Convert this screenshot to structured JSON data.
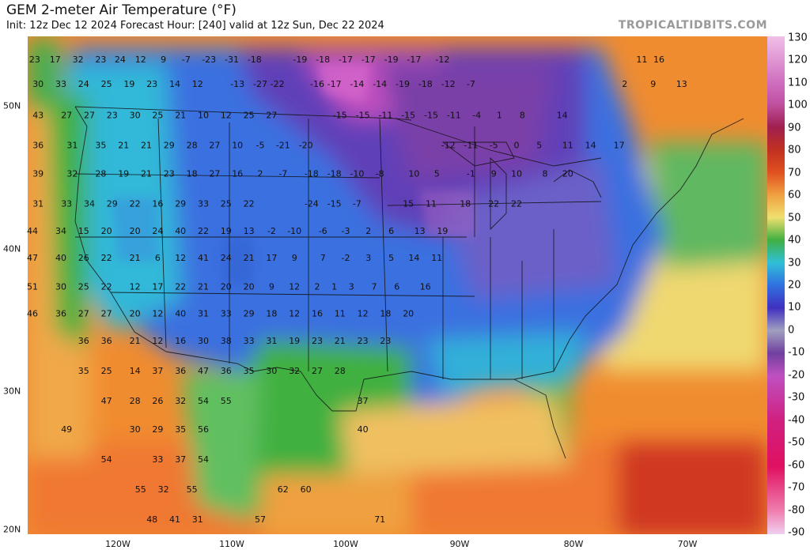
{
  "header": {
    "title": "GEM 2-meter Air Temperature (°F)",
    "subtitle": "Init: 12z Dec 12 2024   Forecast Hour: [240]   valid at 12z Sun, Dec 22 2024",
    "brand": "TROPICALTIDBITS.COM"
  },
  "axes": {
    "lat_labels": [
      {
        "text": "50N",
        "lat": 50
      },
      {
        "text": "40N",
        "lat": 40
      },
      {
        "text": "30N",
        "lat": 30
      },
      {
        "text": "20N",
        "lat": 20
      }
    ],
    "lon_labels": [
      {
        "text": "120W",
        "lon": -120
      },
      {
        "text": "110W",
        "lon": -110
      },
      {
        "text": "100W",
        "lon": -100
      },
      {
        "text": "90W",
        "lon": -90
      },
      {
        "text": "80W",
        "lon": -80
      },
      {
        "text": "70W",
        "lon": -70
      }
    ]
  },
  "colorbar": {
    "labels": [
      "130",
      "120",
      "110",
      "100",
      "90",
      "80",
      "70",
      "60",
      "50",
      "40",
      "30",
      "20",
      "10",
      "0",
      "-10",
      "-20",
      "-30",
      "-40",
      "-50",
      "-60",
      "-70",
      "-80",
      "-90"
    ],
    "stops": [
      {
        "v": 130,
        "c": "#f0c0e8"
      },
      {
        "v": 110,
        "c": "#d070c0"
      },
      {
        "v": 100,
        "c": "#c050a0"
      },
      {
        "v": 90,
        "c": "#a02050"
      },
      {
        "v": 80,
        "c": "#c03020"
      },
      {
        "v": 70,
        "c": "#e05020"
      },
      {
        "v": 60,
        "c": "#f0a040"
      },
      {
        "v": 50,
        "c": "#f0e070"
      },
      {
        "v": 40,
        "c": "#40b040"
      },
      {
        "v": 30,
        "c": "#30c0d8"
      },
      {
        "v": 20,
        "c": "#3070e0"
      },
      {
        "v": 10,
        "c": "#4030c0"
      },
      {
        "v": 0,
        "c": "#a0a0c0"
      },
      {
        "v": -10,
        "c": "#7040a0"
      },
      {
        "v": -20,
        "c": "#c050c0"
      },
      {
        "v": -40,
        "c": "#d02080"
      },
      {
        "v": -60,
        "c": "#e01060"
      },
      {
        "v": -80,
        "c": "#f080b0"
      },
      {
        "v": -90,
        "c": "#f0d0f0"
      }
    ]
  },
  "temperatures": [
    {
      "t": "23",
      "lon": -127.3,
      "lat": 53.2
    },
    {
      "t": "17",
      "lon": -125.5,
      "lat": 53.2
    },
    {
      "t": "32",
      "lon": -123.5,
      "lat": 53.2
    },
    {
      "t": "23",
      "lon": -121.5,
      "lat": 53.2
    },
    {
      "t": "24",
      "lon": -119.8,
      "lat": 53.2
    },
    {
      "t": "12",
      "lon": -118.0,
      "lat": 53.2
    },
    {
      "t": "9",
      "lon": -116.0,
      "lat": 53.2
    },
    {
      "t": "-7",
      "lon": -114.0,
      "lat": 53.2
    },
    {
      "t": "-23",
      "lon": -112.0,
      "lat": 53.2
    },
    {
      "t": "-31",
      "lon": -110.0,
      "lat": 53.2
    },
    {
      "t": "-18",
      "lon": -108.0,
      "lat": 53.2
    },
    {
      "t": "-19",
      "lon": -104.0,
      "lat": 53.2
    },
    {
      "t": "-18",
      "lon": -102.0,
      "lat": 53.2
    },
    {
      "t": "-17",
      "lon": -100.0,
      "lat": 53.2
    },
    {
      "t": "-17",
      "lon": -98.0,
      "lat": 53.2
    },
    {
      "t": "-19",
      "lon": -96.0,
      "lat": 53.2
    },
    {
      "t": "-17",
      "lon": -94.0,
      "lat": 53.2
    },
    {
      "t": "-12",
      "lon": -91.5,
      "lat": 53.2
    },
    {
      "t": "11",
      "lon": -74.0,
      "lat": 53.2
    },
    {
      "t": "16",
      "lon": -72.5,
      "lat": 53.2
    },
    {
      "t": "30",
      "lon": -127.0,
      "lat": 51.5
    },
    {
      "t": "33",
      "lon": -125.0,
      "lat": 51.5
    },
    {
      "t": "24",
      "lon": -123.0,
      "lat": 51.5
    },
    {
      "t": "25",
      "lon": -121.0,
      "lat": 51.5
    },
    {
      "t": "19",
      "lon": -119.0,
      "lat": 51.5
    },
    {
      "t": "23",
      "lon": -117.0,
      "lat": 51.5
    },
    {
      "t": "14",
      "lon": -115.0,
      "lat": 51.5
    },
    {
      "t": "12",
      "lon": -113.0,
      "lat": 51.5
    },
    {
      "t": "-13",
      "lon": -109.5,
      "lat": 51.5
    },
    {
      "t": "-27",
      "lon": -107.5,
      "lat": 51.5
    },
    {
      "t": "-22",
      "lon": -106.0,
      "lat": 51.5
    },
    {
      "t": "-16",
      "lon": -102.5,
      "lat": 51.5
    },
    {
      "t": "-17",
      "lon": -101.0,
      "lat": 51.5
    },
    {
      "t": "-14",
      "lon": -99.0,
      "lat": 51.5
    },
    {
      "t": "-14",
      "lon": -97.0,
      "lat": 51.5
    },
    {
      "t": "-19",
      "lon": -95.0,
      "lat": 51.5
    },
    {
      "t": "-18",
      "lon": -93.0,
      "lat": 51.5
    },
    {
      "t": "-12",
      "lon": -91.0,
      "lat": 51.5
    },
    {
      "t": "-7",
      "lon": -89.0,
      "lat": 51.5
    },
    {
      "t": "2",
      "lon": -75.5,
      "lat": 51.5
    },
    {
      "t": "9",
      "lon": -73.0,
      "lat": 51.5
    },
    {
      "t": "13",
      "lon": -70.5,
      "lat": 51.5
    },
    {
      "t": "43",
      "lon": -127.0,
      "lat": 49.3
    },
    {
      "t": "27",
      "lon": -124.5,
      "lat": 49.3
    },
    {
      "t": "27",
      "lon": -122.5,
      "lat": 49.3
    },
    {
      "t": "23",
      "lon": -120.5,
      "lat": 49.3
    },
    {
      "t": "30",
      "lon": -118.5,
      "lat": 49.3
    },
    {
      "t": "25",
      "lon": -116.5,
      "lat": 49.3
    },
    {
      "t": "21",
      "lon": -114.5,
      "lat": 49.3
    },
    {
      "t": "10",
      "lon": -112.5,
      "lat": 49.3
    },
    {
      "t": "12",
      "lon": -110.5,
      "lat": 49.3
    },
    {
      "t": "25",
      "lon": -108.5,
      "lat": 49.3
    },
    {
      "t": "27",
      "lon": -106.5,
      "lat": 49.3
    },
    {
      "t": "-15",
      "lon": -100.5,
      "lat": 49.3
    },
    {
      "t": "-15",
      "lon": -98.5,
      "lat": 49.3
    },
    {
      "t": "-11",
      "lon": -96.5,
      "lat": 49.3
    },
    {
      "t": "-15",
      "lon": -94.5,
      "lat": 49.3
    },
    {
      "t": "-15",
      "lon": -92.5,
      "lat": 49.3
    },
    {
      "t": "-11",
      "lon": -90.5,
      "lat": 49.3
    },
    {
      "t": "-4",
      "lon": -88.5,
      "lat": 49.3
    },
    {
      "t": "1",
      "lon": -86.5,
      "lat": 49.3
    },
    {
      "t": "8",
      "lon": -84.5,
      "lat": 49.3
    },
    {
      "t": "14",
      "lon": -81.0,
      "lat": 49.3
    },
    {
      "t": "36",
      "lon": -127.0,
      "lat": 47.2
    },
    {
      "t": "31",
      "lon": -124.0,
      "lat": 47.2
    },
    {
      "t": "35",
      "lon": -121.5,
      "lat": 47.2
    },
    {
      "t": "21",
      "lon": -119.5,
      "lat": 47.2
    },
    {
      "t": "21",
      "lon": -117.5,
      "lat": 47.2
    },
    {
      "t": "29",
      "lon": -115.5,
      "lat": 47.2
    },
    {
      "t": "28",
      "lon": -113.5,
      "lat": 47.2
    },
    {
      "t": "27",
      "lon": -111.5,
      "lat": 47.2
    },
    {
      "t": "10",
      "lon": -109.5,
      "lat": 47.2
    },
    {
      "t": "-5",
      "lon": -107.5,
      "lat": 47.2
    },
    {
      "t": "-21",
      "lon": -105.5,
      "lat": 47.2
    },
    {
      "t": "-20",
      "lon": -103.5,
      "lat": 47.2
    },
    {
      "t": "-12",
      "lon": -91.0,
      "lat": 47.2
    },
    {
      "t": "-11",
      "lon": -89.0,
      "lat": 47.2
    },
    {
      "t": "-5",
      "lon": -87.0,
      "lat": 47.2
    },
    {
      "t": "0",
      "lon": -85.0,
      "lat": 47.2
    },
    {
      "t": "5",
      "lon": -83.0,
      "lat": 47.2
    },
    {
      "t": "11",
      "lon": -80.5,
      "lat": 47.2
    },
    {
      "t": "14",
      "lon": -78.5,
      "lat": 47.2
    },
    {
      "t": "17",
      "lon": -76.0,
      "lat": 47.2
    },
    {
      "t": "39",
      "lon": -127.0,
      "lat": 45.2
    },
    {
      "t": "32",
      "lon": -124.0,
      "lat": 45.2
    },
    {
      "t": "28",
      "lon": -121.5,
      "lat": 45.2
    },
    {
      "t": "19",
      "lon": -119.5,
      "lat": 45.2
    },
    {
      "t": "21",
      "lon": -117.5,
      "lat": 45.2
    },
    {
      "t": "23",
      "lon": -115.5,
      "lat": 45.2
    },
    {
      "t": "18",
      "lon": -113.5,
      "lat": 45.2
    },
    {
      "t": "27",
      "lon": -111.5,
      "lat": 45.2
    },
    {
      "t": "16",
      "lon": -109.5,
      "lat": 45.2
    },
    {
      "t": "2",
      "lon": -107.5,
      "lat": 45.2
    },
    {
      "t": "-7",
      "lon": -105.5,
      "lat": 45.2
    },
    {
      "t": "-18",
      "lon": -103.0,
      "lat": 45.2
    },
    {
      "t": "-18",
      "lon": -101.0,
      "lat": 45.2
    },
    {
      "t": "-10",
      "lon": -99.0,
      "lat": 45.2
    },
    {
      "t": "-8",
      "lon": -97.0,
      "lat": 45.2
    },
    {
      "t": "10",
      "lon": -94.0,
      "lat": 45.2
    },
    {
      "t": "5",
      "lon": -92.0,
      "lat": 45.2
    },
    {
      "t": "-1",
      "lon": -89.0,
      "lat": 45.2
    },
    {
      "t": "9",
      "lon": -87.0,
      "lat": 45.2
    },
    {
      "t": "10",
      "lon": -85.0,
      "lat": 45.2
    },
    {
      "t": "8",
      "lon": -82.5,
      "lat": 45.2
    },
    {
      "t": "20",
      "lon": -80.5,
      "lat": 45.2
    },
    {
      "t": "31",
      "lon": -127.0,
      "lat": 43.1
    },
    {
      "t": "33",
      "lon": -124.5,
      "lat": 43.1
    },
    {
      "t": "34",
      "lon": -122.5,
      "lat": 43.1
    },
    {
      "t": "29",
      "lon": -120.5,
      "lat": 43.1
    },
    {
      "t": "22",
      "lon": -118.5,
      "lat": 43.1
    },
    {
      "t": "16",
      "lon": -116.5,
      "lat": 43.1
    },
    {
      "t": "29",
      "lon": -114.5,
      "lat": 43.1
    },
    {
      "t": "33",
      "lon": -112.5,
      "lat": 43.1
    },
    {
      "t": "25",
      "lon": -110.5,
      "lat": 43.1
    },
    {
      "t": "22",
      "lon": -108.5,
      "lat": 43.1
    },
    {
      "t": "-24",
      "lon": -103.0,
      "lat": 43.1
    },
    {
      "t": "-15",
      "lon": -101.0,
      "lat": 43.1
    },
    {
      "t": "-7",
      "lon": -99.0,
      "lat": 43.1
    },
    {
      "t": "15",
      "lon": -94.5,
      "lat": 43.1
    },
    {
      "t": "11",
      "lon": -92.5,
      "lat": 43.1
    },
    {
      "t": "18",
      "lon": -89.5,
      "lat": 43.1
    },
    {
      "t": "22",
      "lon": -87.0,
      "lat": 43.1
    },
    {
      "t": "22",
      "lon": -85.0,
      "lat": 43.1
    },
    {
      "t": "44",
      "lon": -127.5,
      "lat": 41.2
    },
    {
      "t": "34",
      "lon": -125.0,
      "lat": 41.2
    },
    {
      "t": "15",
      "lon": -123.0,
      "lat": 41.2
    },
    {
      "t": "20",
      "lon": -121.0,
      "lat": 41.2
    },
    {
      "t": "20",
      "lon": -118.5,
      "lat": 41.2
    },
    {
      "t": "24",
      "lon": -116.5,
      "lat": 41.2
    },
    {
      "t": "40",
      "lon": -114.5,
      "lat": 41.2
    },
    {
      "t": "22",
      "lon": -112.5,
      "lat": 41.2
    },
    {
      "t": "19",
      "lon": -110.5,
      "lat": 41.2
    },
    {
      "t": "13",
      "lon": -108.5,
      "lat": 41.2
    },
    {
      "t": "-2",
      "lon": -106.5,
      "lat": 41.2
    },
    {
      "t": "-10",
      "lon": -104.5,
      "lat": 41.2
    },
    {
      "t": "-6",
      "lon": -102.0,
      "lat": 41.2
    },
    {
      "t": "-3",
      "lon": -100.0,
      "lat": 41.2
    },
    {
      "t": "2",
      "lon": -98.0,
      "lat": 41.2
    },
    {
      "t": "6",
      "lon": -96.0,
      "lat": 41.2
    },
    {
      "t": "13",
      "lon": -93.5,
      "lat": 41.2
    },
    {
      "t": "19",
      "lon": -91.5,
      "lat": 41.2
    },
    {
      "t": "47",
      "lon": -127.5,
      "lat": 39.3
    },
    {
      "t": "40",
      "lon": -125.0,
      "lat": 39.3
    },
    {
      "t": "26",
      "lon": -123.0,
      "lat": 39.3
    },
    {
      "t": "22",
      "lon": -121.0,
      "lat": 39.3
    },
    {
      "t": "21",
      "lon": -118.5,
      "lat": 39.3
    },
    {
      "t": "6",
      "lon": -116.5,
      "lat": 39.3
    },
    {
      "t": "12",
      "lon": -114.5,
      "lat": 39.3
    },
    {
      "t": "41",
      "lon": -112.5,
      "lat": 39.3
    },
    {
      "t": "24",
      "lon": -110.5,
      "lat": 39.3
    },
    {
      "t": "21",
      "lon": -108.5,
      "lat": 39.3
    },
    {
      "t": "17",
      "lon": -106.5,
      "lat": 39.3
    },
    {
      "t": "9",
      "lon": -104.5,
      "lat": 39.3
    },
    {
      "t": "7",
      "lon": -102.0,
      "lat": 39.3
    },
    {
      "t": "-2",
      "lon": -100.0,
      "lat": 39.3
    },
    {
      "t": "3",
      "lon": -98.0,
      "lat": 39.3
    },
    {
      "t": "5",
      "lon": -96.0,
      "lat": 39.3
    },
    {
      "t": "14",
      "lon": -94.0,
      "lat": 39.3
    },
    {
      "t": "11",
      "lon": -92.0,
      "lat": 39.3
    },
    {
      "t": "51",
      "lon": -127.5,
      "lat": 37.3
    },
    {
      "t": "30",
      "lon": -125.0,
      "lat": 37.3
    },
    {
      "t": "25",
      "lon": -123.0,
      "lat": 37.3
    },
    {
      "t": "22",
      "lon": -121.0,
      "lat": 37.3
    },
    {
      "t": "12",
      "lon": -118.5,
      "lat": 37.3
    },
    {
      "t": "17",
      "lon": -116.5,
      "lat": 37.3
    },
    {
      "t": "22",
      "lon": -114.5,
      "lat": 37.3
    },
    {
      "t": "21",
      "lon": -112.5,
      "lat": 37.3
    },
    {
      "t": "20",
      "lon": -110.5,
      "lat": 37.3
    },
    {
      "t": "20",
      "lon": -108.5,
      "lat": 37.3
    },
    {
      "t": "9",
      "lon": -106.5,
      "lat": 37.3
    },
    {
      "t": "12",
      "lon": -104.5,
      "lat": 37.3
    },
    {
      "t": "2",
      "lon": -102.5,
      "lat": 37.3
    },
    {
      "t": "1",
      "lon": -101.0,
      "lat": 37.3
    },
    {
      "t": "3",
      "lon": -99.5,
      "lat": 37.3
    },
    {
      "t": "7",
      "lon": -97.5,
      "lat": 37.3
    },
    {
      "t": "6",
      "lon": -95.5,
      "lat": 37.3
    },
    {
      "t": "16",
      "lon": -93.0,
      "lat": 37.3
    },
    {
      "t": "46",
      "lon": -127.5,
      "lat": 35.4
    },
    {
      "t": "36",
      "lon": -125.0,
      "lat": 35.4
    },
    {
      "t": "27",
      "lon": -123.0,
      "lat": 35.4
    },
    {
      "t": "27",
      "lon": -121.0,
      "lat": 35.4
    },
    {
      "t": "20",
      "lon": -118.5,
      "lat": 35.4
    },
    {
      "t": "12",
      "lon": -116.5,
      "lat": 35.4
    },
    {
      "t": "40",
      "lon": -114.5,
      "lat": 35.4
    },
    {
      "t": "31",
      "lon": -112.5,
      "lat": 35.4
    },
    {
      "t": "33",
      "lon": -110.5,
      "lat": 35.4
    },
    {
      "t": "29",
      "lon": -108.5,
      "lat": 35.4
    },
    {
      "t": "18",
      "lon": -106.5,
      "lat": 35.4
    },
    {
      "t": "12",
      "lon": -104.5,
      "lat": 35.4
    },
    {
      "t": "16",
      "lon": -102.5,
      "lat": 35.4
    },
    {
      "t": "11",
      "lon": -100.5,
      "lat": 35.4
    },
    {
      "t": "12",
      "lon": -98.5,
      "lat": 35.4
    },
    {
      "t": "18",
      "lon": -96.5,
      "lat": 35.4
    },
    {
      "t": "20",
      "lon": -94.5,
      "lat": 35.4
    },
    {
      "t": "36",
      "lon": -123.0,
      "lat": 33.5
    },
    {
      "t": "36",
      "lon": -121.0,
      "lat": 33.5
    },
    {
      "t": "21",
      "lon": -118.5,
      "lat": 33.5
    },
    {
      "t": "12",
      "lon": -116.5,
      "lat": 33.5
    },
    {
      "t": "16",
      "lon": -114.5,
      "lat": 33.5
    },
    {
      "t": "30",
      "lon": -112.5,
      "lat": 33.5
    },
    {
      "t": "38",
      "lon": -110.5,
      "lat": 33.5
    },
    {
      "t": "33",
      "lon": -108.5,
      "lat": 33.5
    },
    {
      "t": "31",
      "lon": -106.5,
      "lat": 33.5
    },
    {
      "t": "19",
      "lon": -104.5,
      "lat": 33.5
    },
    {
      "t": "23",
      "lon": -102.5,
      "lat": 33.5
    },
    {
      "t": "21",
      "lon": -100.5,
      "lat": 33.5
    },
    {
      "t": "23",
      "lon": -98.5,
      "lat": 33.5
    },
    {
      "t": "23",
      "lon": -96.5,
      "lat": 33.5
    },
    {
      "t": "35",
      "lon": -123.0,
      "lat": 31.4
    },
    {
      "t": "25",
      "lon": -121.0,
      "lat": 31.4
    },
    {
      "t": "14",
      "lon": -118.5,
      "lat": 31.4
    },
    {
      "t": "37",
      "lon": -116.5,
      "lat": 31.4
    },
    {
      "t": "36",
      "lon": -114.5,
      "lat": 31.4
    },
    {
      "t": "47",
      "lon": -112.5,
      "lat": 31.4
    },
    {
      "t": "36",
      "lon": -110.5,
      "lat": 31.4
    },
    {
      "t": "35",
      "lon": -108.5,
      "lat": 31.4
    },
    {
      "t": "30",
      "lon": -106.5,
      "lat": 31.4
    },
    {
      "t": "32",
      "lon": -104.5,
      "lat": 31.4
    },
    {
      "t": "27",
      "lon": -102.5,
      "lat": 31.4
    },
    {
      "t": "28",
      "lon": -100.5,
      "lat": 31.4
    },
    {
      "t": "47",
      "lon": -121.0,
      "lat": 29.3
    },
    {
      "t": "28",
      "lon": -118.5,
      "lat": 29.3
    },
    {
      "t": "26",
      "lon": -116.5,
      "lat": 29.3
    },
    {
      "t": "32",
      "lon": -114.5,
      "lat": 29.3
    },
    {
      "t": "54",
      "lon": -112.5,
      "lat": 29.3
    },
    {
      "t": "55",
      "lon": -110.5,
      "lat": 29.3
    },
    {
      "t": "37",
      "lon": -98.5,
      "lat": 29.3
    },
    {
      "t": "49",
      "lon": -124.5,
      "lat": 27.3
    },
    {
      "t": "30",
      "lon": -118.5,
      "lat": 27.3
    },
    {
      "t": "29",
      "lon": -116.5,
      "lat": 27.3
    },
    {
      "t": "35",
      "lon": -114.5,
      "lat": 27.3
    },
    {
      "t": "56",
      "lon": -112.5,
      "lat": 27.3
    },
    {
      "t": "40",
      "lon": -98.5,
      "lat": 27.3
    },
    {
      "t": "54",
      "lon": -121.0,
      "lat": 25.2
    },
    {
      "t": "33",
      "lon": -116.5,
      "lat": 25.2
    },
    {
      "t": "37",
      "lon": -114.5,
      "lat": 25.2
    },
    {
      "t": "54",
      "lon": -112.5,
      "lat": 25.2
    },
    {
      "t": "55",
      "lon": -118.0,
      "lat": 23.1
    },
    {
      "t": "32",
      "lon": -116.0,
      "lat": 23.1
    },
    {
      "t": "55",
      "lon": -113.5,
      "lat": 23.1
    },
    {
      "t": "62",
      "lon": -105.5,
      "lat": 23.1
    },
    {
      "t": "60",
      "lon": -103.5,
      "lat": 23.1
    },
    {
      "t": "48",
      "lon": -117.0,
      "lat": 21.0
    },
    {
      "t": "41",
      "lon": -115.0,
      "lat": 21.0
    },
    {
      "t": "31",
      "lon": -113.0,
      "lat": 21.0
    },
    {
      "t": "57",
      "lon": -107.5,
      "lat": 21.0
    },
    {
      "t": "71",
      "lon": -97.0,
      "lat": 21.0
    }
  ]
}
